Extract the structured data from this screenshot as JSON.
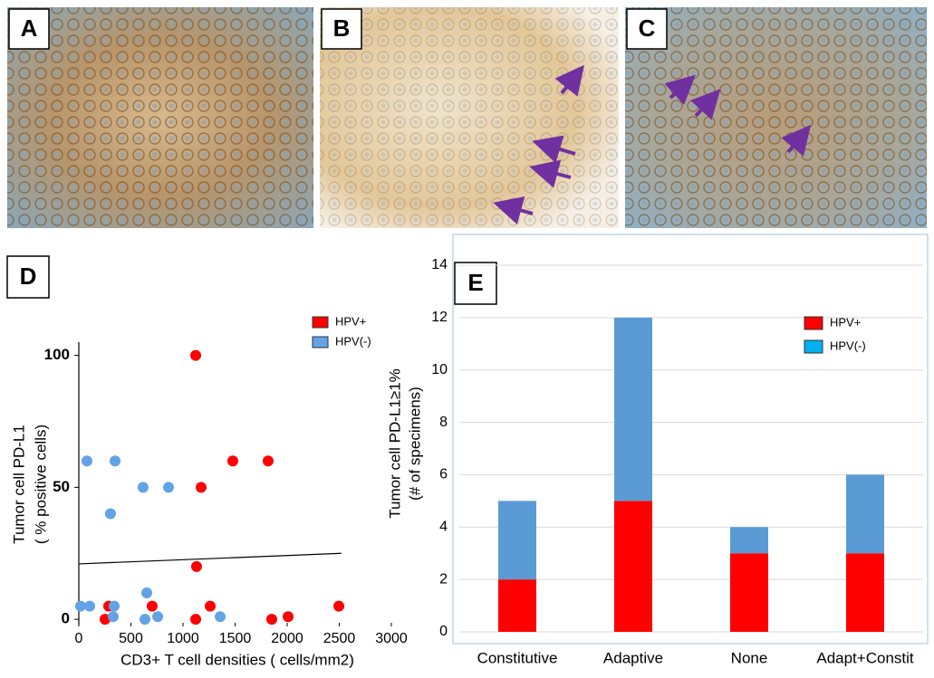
{
  "panels": [
    "A",
    "B",
    "C"
  ],
  "chart_data": [
    {
      "type": "scatter",
      "label": "D",
      "xlabel": "CD3+ T cell densities ( cells/mm2)",
      "ylabel": [
        "Tumor cell PD-L1",
        "( % positive cells)"
      ],
      "xlim": [
        0,
        3000
      ],
      "xticks": [
        0,
        500,
        1000,
        1500,
        2000,
        2500,
        3000
      ],
      "ylim": [
        -2,
        105
      ],
      "yticks": [
        0,
        50,
        100
      ],
      "series": [
        {
          "name": "HPV+",
          "color": "#ff0000",
          "x": [
            1122,
            1478,
            1817,
            1174,
            1130,
            1261,
            704,
            2496,
            2009,
            1852,
            1122,
            252,
            287
          ],
          "y": [
            100,
            60,
            60,
            50,
            20,
            5,
            5,
            5,
            1,
            0,
            0,
            0,
            5
          ]
        },
        {
          "name": "HPV(-)",
          "color": "#62a3e6",
          "x": [
            78,
            348,
            617,
            861,
            304,
            652,
            17,
            104,
            339,
            330,
            757,
            635,
            1357
          ],
          "y": [
            60,
            60,
            50,
            50,
            40,
            10,
            5,
            5,
            5,
            1,
            1,
            0,
            1
          ]
        }
      ],
      "trendline": {
        "x": [
          0,
          2520
        ],
        "y": [
          21,
          25
        ]
      }
    },
    {
      "type": "stacked_bar",
      "label": "E",
      "ylabel": [
        "Tumor cell PD-L1≥1%",
        "(# of specimens)"
      ],
      "categories": [
        "Constitutive",
        "Adaptive",
        "None",
        "Adapt+Constit"
      ],
      "ylim": [
        0,
        14
      ],
      "yticks": [
        0,
        2,
        4,
        6,
        8,
        10,
        12,
        14
      ],
      "grid": true,
      "series": [
        {
          "name": "HPV+",
          "color": "#ff0000",
          "legend_color": "#ff0000",
          "values": [
            2,
            5,
            3,
            3
          ]
        },
        {
          "name": "HPV(-)",
          "color": "#5b9bd5",
          "legend_color": "#00b0f0",
          "values": [
            3,
            7,
            1,
            3
          ]
        }
      ]
    }
  ]
}
